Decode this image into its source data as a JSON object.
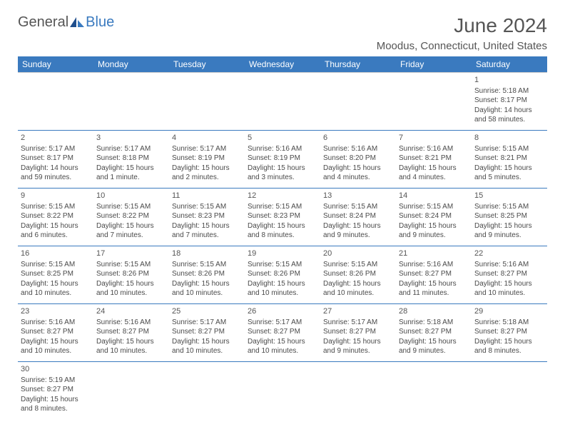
{
  "logo": {
    "part1": "General",
    "part2": "Blue"
  },
  "title": "June 2024",
  "location": "Moodus, Connecticut, United States",
  "weekdays": [
    "Sunday",
    "Monday",
    "Tuesday",
    "Wednesday",
    "Thursday",
    "Friday",
    "Saturday"
  ],
  "colors": {
    "header_bg": "#3a7abf",
    "header_fg": "#ffffff",
    "text": "#4a4a4a",
    "rule": "#3a7abf",
    "light_rule": "#cccccc"
  },
  "weeks": [
    [
      null,
      null,
      null,
      null,
      null,
      null,
      {
        "n": "1",
        "sr": "Sunrise: 5:18 AM",
        "ss": "Sunset: 8:17 PM",
        "d1": "Daylight: 14 hours",
        "d2": "and 58 minutes."
      }
    ],
    [
      {
        "n": "2",
        "sr": "Sunrise: 5:17 AM",
        "ss": "Sunset: 8:17 PM",
        "d1": "Daylight: 14 hours",
        "d2": "and 59 minutes."
      },
      {
        "n": "3",
        "sr": "Sunrise: 5:17 AM",
        "ss": "Sunset: 8:18 PM",
        "d1": "Daylight: 15 hours",
        "d2": "and 1 minute."
      },
      {
        "n": "4",
        "sr": "Sunrise: 5:17 AM",
        "ss": "Sunset: 8:19 PM",
        "d1": "Daylight: 15 hours",
        "d2": "and 2 minutes."
      },
      {
        "n": "5",
        "sr": "Sunrise: 5:16 AM",
        "ss": "Sunset: 8:19 PM",
        "d1": "Daylight: 15 hours",
        "d2": "and 3 minutes."
      },
      {
        "n": "6",
        "sr": "Sunrise: 5:16 AM",
        "ss": "Sunset: 8:20 PM",
        "d1": "Daylight: 15 hours",
        "d2": "and 4 minutes."
      },
      {
        "n": "7",
        "sr": "Sunrise: 5:16 AM",
        "ss": "Sunset: 8:21 PM",
        "d1": "Daylight: 15 hours",
        "d2": "and 4 minutes."
      },
      {
        "n": "8",
        "sr": "Sunrise: 5:15 AM",
        "ss": "Sunset: 8:21 PM",
        "d1": "Daylight: 15 hours",
        "d2": "and 5 minutes."
      }
    ],
    [
      {
        "n": "9",
        "sr": "Sunrise: 5:15 AM",
        "ss": "Sunset: 8:22 PM",
        "d1": "Daylight: 15 hours",
        "d2": "and 6 minutes."
      },
      {
        "n": "10",
        "sr": "Sunrise: 5:15 AM",
        "ss": "Sunset: 8:22 PM",
        "d1": "Daylight: 15 hours",
        "d2": "and 7 minutes."
      },
      {
        "n": "11",
        "sr": "Sunrise: 5:15 AM",
        "ss": "Sunset: 8:23 PM",
        "d1": "Daylight: 15 hours",
        "d2": "and 7 minutes."
      },
      {
        "n": "12",
        "sr": "Sunrise: 5:15 AM",
        "ss": "Sunset: 8:23 PM",
        "d1": "Daylight: 15 hours",
        "d2": "and 8 minutes."
      },
      {
        "n": "13",
        "sr": "Sunrise: 5:15 AM",
        "ss": "Sunset: 8:24 PM",
        "d1": "Daylight: 15 hours",
        "d2": "and 9 minutes."
      },
      {
        "n": "14",
        "sr": "Sunrise: 5:15 AM",
        "ss": "Sunset: 8:24 PM",
        "d1": "Daylight: 15 hours",
        "d2": "and 9 minutes."
      },
      {
        "n": "15",
        "sr": "Sunrise: 5:15 AM",
        "ss": "Sunset: 8:25 PM",
        "d1": "Daylight: 15 hours",
        "d2": "and 9 minutes."
      }
    ],
    [
      {
        "n": "16",
        "sr": "Sunrise: 5:15 AM",
        "ss": "Sunset: 8:25 PM",
        "d1": "Daylight: 15 hours",
        "d2": "and 10 minutes."
      },
      {
        "n": "17",
        "sr": "Sunrise: 5:15 AM",
        "ss": "Sunset: 8:26 PM",
        "d1": "Daylight: 15 hours",
        "d2": "and 10 minutes."
      },
      {
        "n": "18",
        "sr": "Sunrise: 5:15 AM",
        "ss": "Sunset: 8:26 PM",
        "d1": "Daylight: 15 hours",
        "d2": "and 10 minutes."
      },
      {
        "n": "19",
        "sr": "Sunrise: 5:15 AM",
        "ss": "Sunset: 8:26 PM",
        "d1": "Daylight: 15 hours",
        "d2": "and 10 minutes."
      },
      {
        "n": "20",
        "sr": "Sunrise: 5:15 AM",
        "ss": "Sunset: 8:26 PM",
        "d1": "Daylight: 15 hours",
        "d2": "and 10 minutes."
      },
      {
        "n": "21",
        "sr": "Sunrise: 5:16 AM",
        "ss": "Sunset: 8:27 PM",
        "d1": "Daylight: 15 hours",
        "d2": "and 11 minutes."
      },
      {
        "n": "22",
        "sr": "Sunrise: 5:16 AM",
        "ss": "Sunset: 8:27 PM",
        "d1": "Daylight: 15 hours",
        "d2": "and 10 minutes."
      }
    ],
    [
      {
        "n": "23",
        "sr": "Sunrise: 5:16 AM",
        "ss": "Sunset: 8:27 PM",
        "d1": "Daylight: 15 hours",
        "d2": "and 10 minutes."
      },
      {
        "n": "24",
        "sr": "Sunrise: 5:16 AM",
        "ss": "Sunset: 8:27 PM",
        "d1": "Daylight: 15 hours",
        "d2": "and 10 minutes."
      },
      {
        "n": "25",
        "sr": "Sunrise: 5:17 AM",
        "ss": "Sunset: 8:27 PM",
        "d1": "Daylight: 15 hours",
        "d2": "and 10 minutes."
      },
      {
        "n": "26",
        "sr": "Sunrise: 5:17 AM",
        "ss": "Sunset: 8:27 PM",
        "d1": "Daylight: 15 hours",
        "d2": "and 10 minutes."
      },
      {
        "n": "27",
        "sr": "Sunrise: 5:17 AM",
        "ss": "Sunset: 8:27 PM",
        "d1": "Daylight: 15 hours",
        "d2": "and 9 minutes."
      },
      {
        "n": "28",
        "sr": "Sunrise: 5:18 AM",
        "ss": "Sunset: 8:27 PM",
        "d1": "Daylight: 15 hours",
        "d2": "and 9 minutes."
      },
      {
        "n": "29",
        "sr": "Sunrise: 5:18 AM",
        "ss": "Sunset: 8:27 PM",
        "d1": "Daylight: 15 hours",
        "d2": "and 8 minutes."
      }
    ],
    [
      {
        "n": "30",
        "sr": "Sunrise: 5:19 AM",
        "ss": "Sunset: 8:27 PM",
        "d1": "Daylight: 15 hours",
        "d2": "and 8 minutes."
      },
      null,
      null,
      null,
      null,
      null,
      null
    ]
  ]
}
